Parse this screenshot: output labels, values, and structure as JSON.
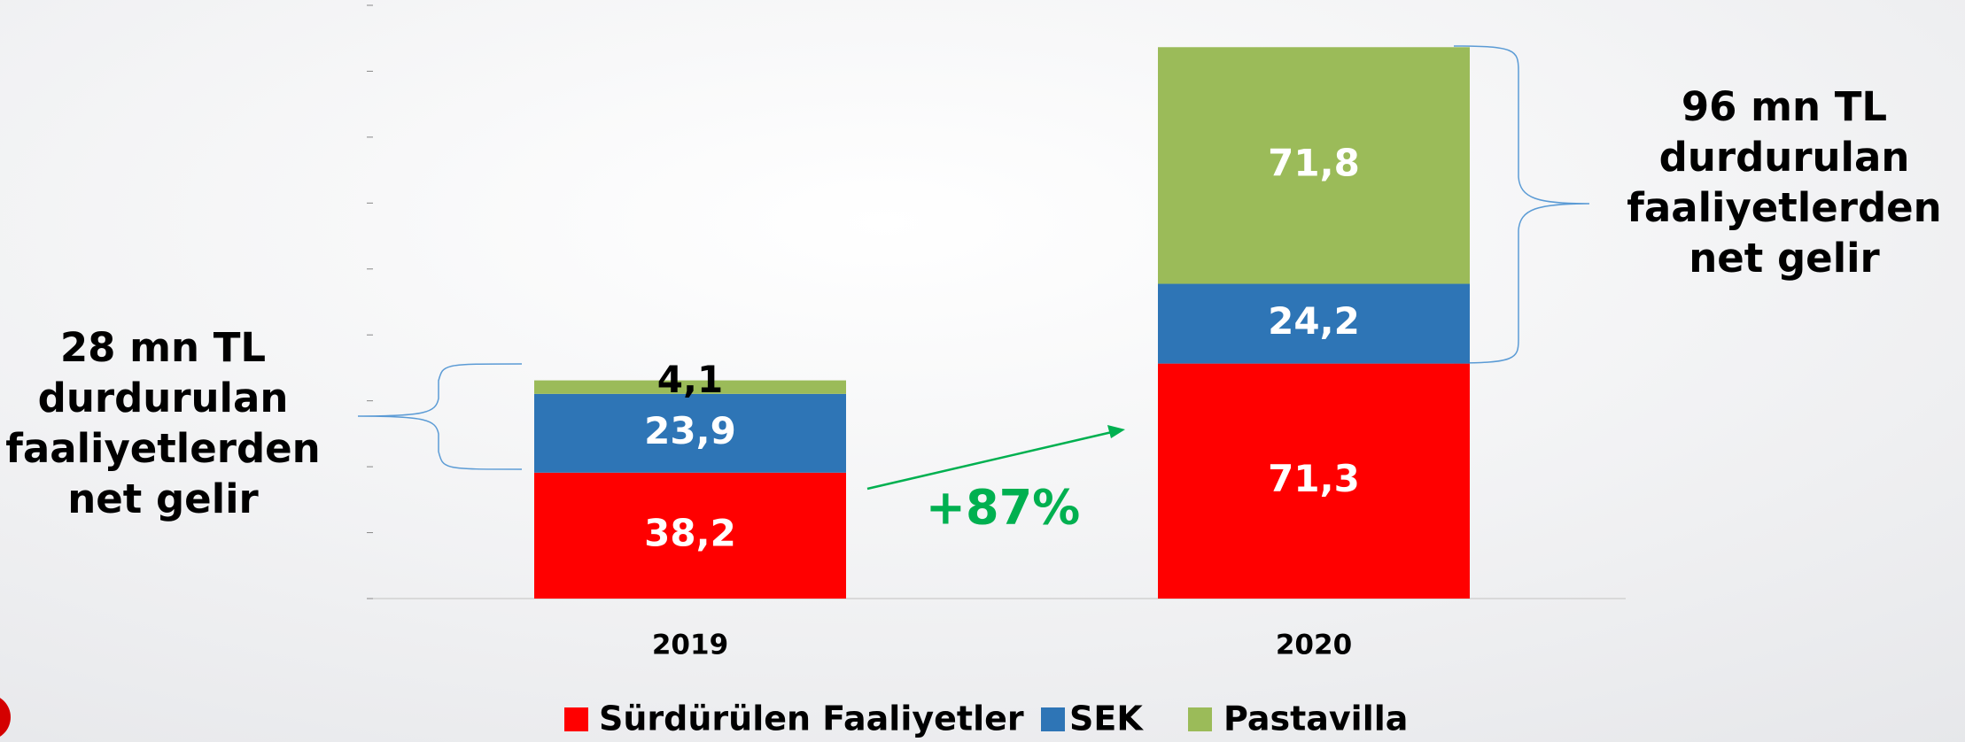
{
  "chart_data": {
    "type": "stacked_bar",
    "categories": [
      "2019",
      "2020"
    ],
    "series": [
      {
        "name": "Sürdürülen Faaliyetler",
        "color": "#ff0000",
        "values": [
          38.2,
          71.3
        ],
        "value_labels": [
          "38,2",
          "71,3"
        ]
      },
      {
        "name": "SEK",
        "color": "#2e75b6",
        "values": [
          23.9,
          24.2
        ],
        "value_labels": [
          "23,9",
          "24,2"
        ]
      },
      {
        "name": "Pastavilla",
        "color": "#9bbb59",
        "values": [
          4.1,
          71.8
        ],
        "value_labels": [
          "4,1",
          "71,8"
        ]
      }
    ],
    "ylim": [
      0,
      180
    ],
    "yticks": [
      0,
      20,
      40,
      60,
      80,
      100,
      120,
      140,
      160,
      180
    ],
    "annotations": [
      {
        "lines": [
          "28 mn TL",
          "durdurulan",
          "faaliyetlerden",
          "net gelir"
        ]
      },
      {
        "lines": [
          "96 mn TL",
          "durdurulan",
          "faaliyetlerden",
          "net gelir"
        ]
      },
      {
        "lines": [
          "+87%"
        ]
      }
    ]
  }
}
